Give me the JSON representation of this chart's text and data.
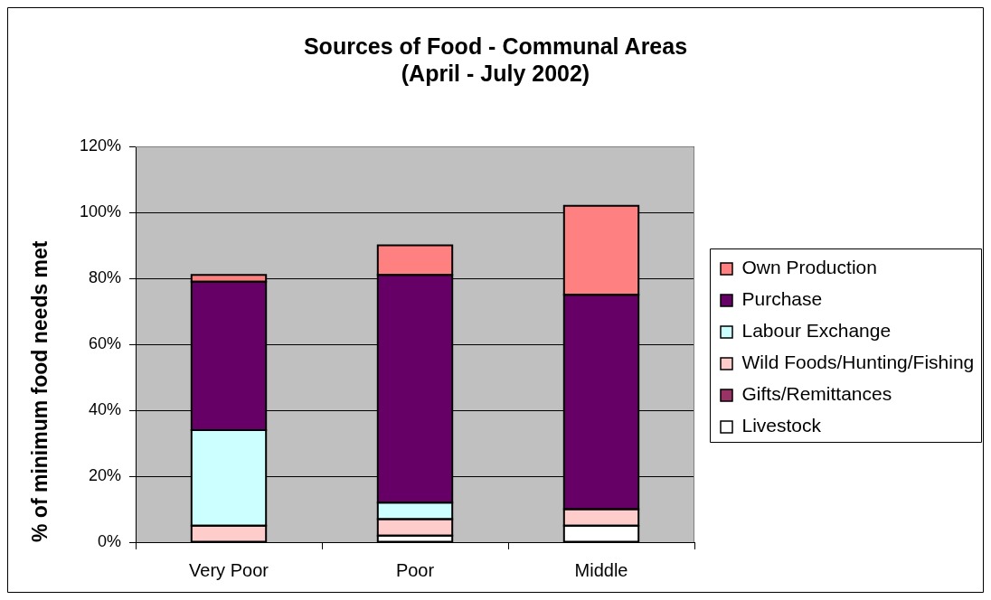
{
  "chart_data": {
    "type": "bar",
    "title": "Sources of Food - Communal Areas\n(April - July 2002)",
    "ylabel": "% of minimum food needs met",
    "categories": [
      "Very Poor",
      "Poor",
      "Middle"
    ],
    "series": [
      {
        "name": "Livestock",
        "color": "#ffffff",
        "values": [
          0,
          2,
          5
        ]
      },
      {
        "name": "Gifts/Remittances",
        "color": "#993366",
        "values": [
          0,
          0,
          0
        ]
      },
      {
        "name": "Wild Foods/Hunting/Fishing",
        "color": "#ffcccc",
        "values": [
          5,
          5,
          5
        ]
      },
      {
        "name": "Labour Exchange",
        "color": "#ccffff",
        "values": [
          29,
          5,
          0
        ]
      },
      {
        "name": "Purchase",
        "color": "#660066",
        "values": [
          45,
          69,
          65
        ]
      },
      {
        "name": "Own Production",
        "color": "#ff8080",
        "values": [
          2,
          9,
          27
        ]
      }
    ],
    "stacked": true,
    "ylim": [
      0,
      120
    ],
    "yticks": [
      {
        "value": 0,
        "label": "0%"
      },
      {
        "value": 20,
        "label": "20%"
      },
      {
        "value": 40,
        "label": "40%"
      },
      {
        "value": 60,
        "label": "60%"
      },
      {
        "value": 80,
        "label": "80%"
      },
      {
        "value": 100,
        "label": "100%"
      },
      {
        "value": 120,
        "label": "120%"
      }
    ],
    "grid": "y",
    "legend": "right"
  }
}
